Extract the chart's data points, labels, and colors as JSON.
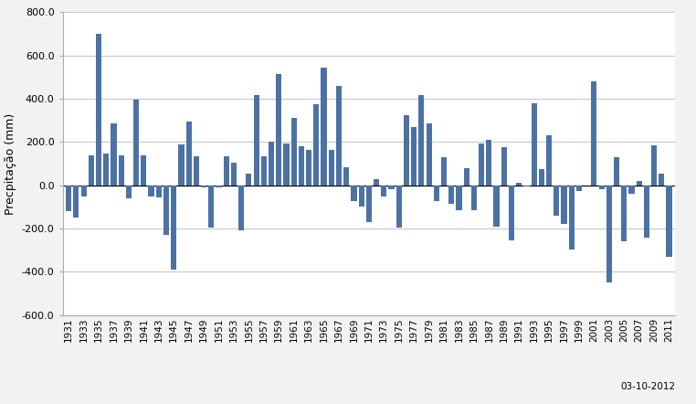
{
  "years": [
    1931,
    1932,
    1933,
    1934,
    1935,
    1936,
    1937,
    1938,
    1939,
    1940,
    1941,
    1942,
    1943,
    1944,
    1945,
    1946,
    1947,
    1948,
    1949,
    1950,
    1951,
    1952,
    1953,
    1954,
    1955,
    1956,
    1957,
    1958,
    1959,
    1960,
    1961,
    1962,
    1963,
    1964,
    1965,
    1966,
    1967,
    1968,
    1969,
    1970,
    1971,
    1972,
    1973,
    1974,
    1975,
    1976,
    1977,
    1978,
    1979,
    1980,
    1981,
    1982,
    1983,
    1984,
    1985,
    1986,
    1987,
    1988,
    1989,
    1990,
    1991,
    1992,
    1993,
    1994,
    1995,
    1996,
    1997,
    1998,
    1999,
    2000,
    2001,
    2002,
    2003,
    2004,
    2005,
    2006,
    2007,
    2008,
    2009,
    2010,
    2011
  ],
  "values": [
    -120,
    -150,
    -50,
    140,
    700,
    145,
    285,
    140,
    -60,
    395,
    140,
    -50,
    -55,
    -230,
    -390,
    190,
    295,
    135,
    -10,
    -195,
    -10,
    135,
    105,
    -210,
    55,
    415,
    135,
    200,
    515,
    195,
    310,
    180,
    165,
    375,
    545,
    165,
    460,
    85,
    -75,
    -100,
    -170,
    30,
    -50,
    -20,
    -195,
    325,
    270,
    415,
    285,
    -75,
    130,
    -85,
    -115,
    80,
    -115,
    195,
    210,
    -190,
    175,
    -255,
    10,
    -5,
    380,
    75,
    230,
    -140,
    -180,
    -295,
    -25,
    0,
    480,
    -20,
    -450,
    130,
    -260,
    -40,
    20,
    -240,
    185,
    55,
    -330
  ],
  "bar_color": "#4C72A4",
  "ylabel": "Precpitação (mm)",
  "ylim": [
    -600,
    800
  ],
  "yticks": [
    -600.0,
    -400.0,
    -200.0,
    0.0,
    200.0,
    400.0,
    600.0,
    800.0
  ],
  "ytick_labels": [
    "-600.0",
    "-400.0",
    "-200.0",
    "0.0",
    "200.0",
    "400.0",
    "600.0",
    "800.0"
  ],
  "xlabel_date": "03-10-2012",
  "bg_color": "#F2F2F2",
  "plot_bg_color": "#FFFFFF",
  "grid_color": "#C8C8C8",
  "bar_width": 0.75
}
